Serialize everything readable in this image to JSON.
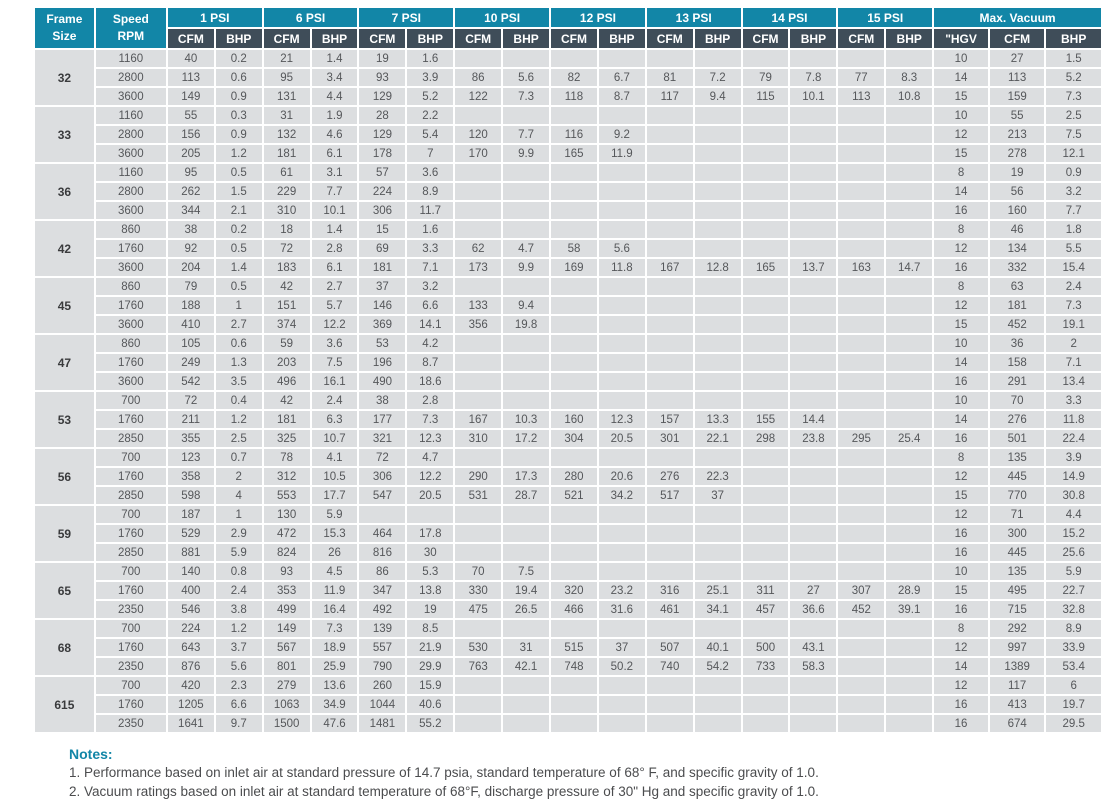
{
  "table": {
    "frame_header": {
      "line1": "Frame",
      "line2": "Size"
    },
    "speed_header": {
      "line1": "Speed",
      "line2": "RPM"
    },
    "psi_headers": [
      "1 PSI",
      "6 PSI",
      "7 PSI",
      "10 PSI",
      "12 PSI",
      "13 PSI",
      "14 PSI",
      "15 PSI"
    ],
    "max_vacuum_header": "Max. Vacuum",
    "sub_headers": [
      "CFM",
      "BHP",
      "CFM",
      "BHP",
      "CFM",
      "BHP",
      "CFM",
      "BHP",
      "CFM",
      "BHP",
      "CFM",
      "BHP",
      "CFM",
      "BHP",
      "CFM",
      "BHP",
      "\"HGV",
      "CFM",
      "BHP"
    ],
    "groups": [
      {
        "frame": "32",
        "rows": [
          {
            "rpm": "1160",
            "cells": [
              "40",
              "0.2",
              "21",
              "1.4",
              "19",
              "1.6",
              "",
              "",
              "",
              "",
              "",
              "",
              "",
              "",
              "",
              "",
              "10",
              "27",
              "1.5"
            ]
          },
          {
            "rpm": "2800",
            "cells": [
              "113",
              "0.6",
              "95",
              "3.4",
              "93",
              "3.9",
              "86",
              "5.6",
              "82",
              "6.7",
              "81",
              "7.2",
              "79",
              "7.8",
              "77",
              "8.3",
              "14",
              "113",
              "5.2"
            ]
          },
          {
            "rpm": "3600",
            "cells": [
              "149",
              "0.9",
              "131",
              "4.4",
              "129",
              "5.2",
              "122",
              "7.3",
              "118",
              "8.7",
              "117",
              "9.4",
              "115",
              "10.1",
              "113",
              "10.8",
              "15",
              "159",
              "7.3"
            ]
          }
        ]
      },
      {
        "frame": "33",
        "rows": [
          {
            "rpm": "1160",
            "cells": [
              "55",
              "0.3",
              "31",
              "1.9",
              "28",
              "2.2",
              "",
              "",
              "",
              "",
              "",
              "",
              "",
              "",
              "",
              "",
              "10",
              "55",
              "2.5"
            ]
          },
          {
            "rpm": "2800",
            "cells": [
              "156",
              "0.9",
              "132",
              "4.6",
              "129",
              "5.4",
              "120",
              "7.7",
              "116",
              "9.2",
              "",
              "",
              "",
              "",
              "",
              "",
              "12",
              "213",
              "7.5"
            ]
          },
          {
            "rpm": "3600",
            "cells": [
              "205",
              "1.2",
              "181",
              "6.1",
              "178",
              "7",
              "170",
              "9.9",
              "165",
              "11.9",
              "",
              "",
              "",
              "",
              "",
              "",
              "15",
              "278",
              "12.1"
            ]
          }
        ]
      },
      {
        "frame": "36",
        "rows": [
          {
            "rpm": "1160",
            "cells": [
              "95",
              "0.5",
              "61",
              "3.1",
              "57",
              "3.6",
              "",
              "",
              "",
              "",
              "",
              "",
              "",
              "",
              "",
              "",
              "8",
              "19",
              "0.9"
            ]
          },
          {
            "rpm": "2800",
            "cells": [
              "262",
              "1.5",
              "229",
              "7.7",
              "224",
              "8.9",
              "",
              "",
              "",
              "",
              "",
              "",
              "",
              "",
              "",
              "",
              "14",
              "56",
              "3.2"
            ]
          },
          {
            "rpm": "3600",
            "cells": [
              "344",
              "2.1",
              "310",
              "10.1",
              "306",
              "11.7",
              "",
              "",
              "",
              "",
              "",
              "",
              "",
              "",
              "",
              "",
              "16",
              "160",
              "7.7"
            ]
          }
        ]
      },
      {
        "frame": "42",
        "rows": [
          {
            "rpm": "860",
            "cells": [
              "38",
              "0.2",
              "18",
              "1.4",
              "15",
              "1.6",
              "",
              "",
              "",
              "",
              "",
              "",
              "",
              "",
              "",
              "",
              "8",
              "46",
              "1.8"
            ]
          },
          {
            "rpm": "1760",
            "cells": [
              "92",
              "0.5",
              "72",
              "2.8",
              "69",
              "3.3",
              "62",
              "4.7",
              "58",
              "5.6",
              "",
              "",
              "",
              "",
              "",
              "",
              "12",
              "134",
              "5.5"
            ]
          },
          {
            "rpm": "3600",
            "cells": [
              "204",
              "1.4",
              "183",
              "6.1",
              "181",
              "7.1",
              "173",
              "9.9",
              "169",
              "11.8",
              "167",
              "12.8",
              "165",
              "13.7",
              "163",
              "14.7",
              "16",
              "332",
              "15.4"
            ]
          }
        ]
      },
      {
        "frame": "45",
        "rows": [
          {
            "rpm": "860",
            "cells": [
              "79",
              "0.5",
              "42",
              "2.7",
              "37",
              "3.2",
              "",
              "",
              "",
              "",
              "",
              "",
              "",
              "",
              "",
              "",
              "8",
              "63",
              "2.4"
            ]
          },
          {
            "rpm": "1760",
            "cells": [
              "188",
              "1",
              "151",
              "5.7",
              "146",
              "6.6",
              "133",
              "9.4",
              "",
              "",
              "",
              "",
              "",
              "",
              "",
              "",
              "12",
              "181",
              "7.3"
            ]
          },
          {
            "rpm": "3600",
            "cells": [
              "410",
              "2.7",
              "374",
              "12.2",
              "369",
              "14.1",
              "356",
              "19.8",
              "",
              "",
              "",
              "",
              "",
              "",
              "",
              "",
              "15",
              "452",
              "19.1"
            ]
          }
        ]
      },
      {
        "frame": "47",
        "rows": [
          {
            "rpm": "860",
            "cells": [
              "105",
              "0.6",
              "59",
              "3.6",
              "53",
              "4.2",
              "",
              "",
              "",
              "",
              "",
              "",
              "",
              "",
              "",
              "",
              "10",
              "36",
              "2"
            ]
          },
          {
            "rpm": "1760",
            "cells": [
              "249",
              "1.3",
              "203",
              "7.5",
              "196",
              "8.7",
              "",
              "",
              "",
              "",
              "",
              "",
              "",
              "",
              "",
              "",
              "14",
              "158",
              "7.1"
            ]
          },
          {
            "rpm": "3600",
            "cells": [
              "542",
              "3.5",
              "496",
              "16.1",
              "490",
              "18.6",
              "",
              "",
              "",
              "",
              "",
              "",
              "",
              "",
              "",
              "",
              "16",
              "291",
              "13.4"
            ]
          }
        ]
      },
      {
        "frame": "53",
        "rows": [
          {
            "rpm": "700",
            "cells": [
              "72",
              "0.4",
              "42",
              "2.4",
              "38",
              "2.8",
              "",
              "",
              "",
              "",
              "",
              "",
              "",
              "",
              "",
              "",
              "10",
              "70",
              "3.3"
            ]
          },
          {
            "rpm": "1760",
            "cells": [
              "211",
              "1.2",
              "181",
              "6.3",
              "177",
              "7.3",
              "167",
              "10.3",
              "160",
              "12.3",
              "157",
              "13.3",
              "155",
              "14.4",
              "",
              "",
              "14",
              "276",
              "11.8"
            ]
          },
          {
            "rpm": "2850",
            "cells": [
              "355",
              "2.5",
              "325",
              "10.7",
              "321",
              "12.3",
              "310",
              "17.2",
              "304",
              "20.5",
              "301",
              "22.1",
              "298",
              "23.8",
              "295",
              "25.4",
              "16",
              "501",
              "22.4"
            ]
          }
        ]
      },
      {
        "frame": "56",
        "rows": [
          {
            "rpm": "700",
            "cells": [
              "123",
              "0.7",
              "78",
              "4.1",
              "72",
              "4.7",
              "",
              "",
              "",
              "",
              "",
              "",
              "",
              "",
              "",
              "",
              "8",
              "135",
              "3.9"
            ]
          },
          {
            "rpm": "1760",
            "cells": [
              "358",
              "2",
              "312",
              "10.5",
              "306",
              "12.2",
              "290",
              "17.3",
              "280",
              "20.6",
              "276",
              "22.3",
              "",
              "",
              "",
              "",
              "12",
              "445",
              "14.9"
            ]
          },
          {
            "rpm": "2850",
            "cells": [
              "598",
              "4",
              "553",
              "17.7",
              "547",
              "20.5",
              "531",
              "28.7",
              "521",
              "34.2",
              "517",
              "37",
              "",
              "",
              "",
              "",
              "15",
              "770",
              "30.8"
            ]
          }
        ]
      },
      {
        "frame": "59",
        "rows": [
          {
            "rpm": "700",
            "cells": [
              "187",
              "1",
              "130",
              "5.9",
              "",
              "",
              "",
              "",
              "",
              "",
              "",
              "",
              "",
              "",
              "",
              "",
              "12",
              "71",
              "4.4"
            ]
          },
          {
            "rpm": "1760",
            "cells": [
              "529",
              "2.9",
              "472",
              "15.3",
              "464",
              "17.8",
              "",
              "",
              "",
              "",
              "",
              "",
              "",
              "",
              "",
              "",
              "16",
              "300",
              "15.2"
            ]
          },
          {
            "rpm": "2850",
            "cells": [
              "881",
              "5.9",
              "824",
              "26",
              "816",
              "30",
              "",
              "",
              "",
              "",
              "",
              "",
              "",
              "",
              "",
              "",
              "16",
              "445",
              "25.6"
            ]
          }
        ]
      },
      {
        "frame": "65",
        "rows": [
          {
            "rpm": "700",
            "cells": [
              "140",
              "0.8",
              "93",
              "4.5",
              "86",
              "5.3",
              "70",
              "7.5",
              "",
              "",
              "",
              "",
              "",
              "",
              "",
              "",
              "10",
              "135",
              "5.9"
            ]
          },
          {
            "rpm": "1760",
            "cells": [
              "400",
              "2.4",
              "353",
              "11.9",
              "347",
              "13.8",
              "330",
              "19.4",
              "320",
              "23.2",
              "316",
              "25.1",
              "311",
              "27",
              "307",
              "28.9",
              "15",
              "495",
              "22.7"
            ]
          },
          {
            "rpm": "2350",
            "cells": [
              "546",
              "3.8",
              "499",
              "16.4",
              "492",
              "19",
              "475",
              "26.5",
              "466",
              "31.6",
              "461",
              "34.1",
              "457",
              "36.6",
              "452",
              "39.1",
              "16",
              "715",
              "32.8"
            ]
          }
        ]
      },
      {
        "frame": "68",
        "rows": [
          {
            "rpm": "700",
            "cells": [
              "224",
              "1.2",
              "149",
              "7.3",
              "139",
              "8.5",
              "",
              "",
              "",
              "",
              "",
              "",
              "",
              "",
              "",
              "",
              "8",
              "292",
              "8.9"
            ]
          },
          {
            "rpm": "1760",
            "cells": [
              "643",
              "3.7",
              "567",
              "18.9",
              "557",
              "21.9",
              "530",
              "31",
              "515",
              "37",
              "507",
              "40.1",
              "500",
              "43.1",
              "",
              "",
              "12",
              "997",
              "33.9"
            ]
          },
          {
            "rpm": "2350",
            "cells": [
              "876",
              "5.6",
              "801",
              "25.9",
              "790",
              "29.9",
              "763",
              "42.1",
              "748",
              "50.2",
              "740",
              "54.2",
              "733",
              "58.3",
              "",
              "",
              "14",
              "1389",
              "53.4"
            ]
          }
        ]
      },
      {
        "frame": "615",
        "rows": [
          {
            "rpm": "700",
            "cells": [
              "420",
              "2.3",
              "279",
              "13.6",
              "260",
              "15.9",
              "",
              "",
              "",
              "",
              "",
              "",
              "",
              "",
              "",
              "",
              "12",
              "117",
              "6"
            ]
          },
          {
            "rpm": "1760",
            "cells": [
              "1205",
              "6.6",
              "1063",
              "34.9",
              "1044",
              "40.6",
              "",
              "",
              "",
              "",
              "",
              "",
              "",
              "",
              "",
              "",
              "16",
              "413",
              "19.7"
            ]
          },
          {
            "rpm": "2350",
            "cells": [
              "1641",
              "9.7",
              "1500",
              "47.6",
              "1481",
              "55.2",
              "",
              "",
              "",
              "",
              "",
              "",
              "",
              "",
              "",
              "",
              "16",
              "674",
              "29.5"
            ]
          }
        ]
      }
    ]
  },
  "notes": {
    "title": "Notes:",
    "items": [
      "1.  Performance based on inlet air at standard pressure of 14.7 psia, standard temperature of 68° F, and specific gravity of 1.0.",
      "2.  Vacuum ratings based on inlet air at standard temperature of 68°F, discharge pressure of 30\" Hg and specific gravity of 1.0."
    ]
  },
  "colors": {
    "teal_header": "#1286a7",
    "dark_subheader": "#3f4d59",
    "cell_background": "#dcdee0",
    "cell_text": "#55575a"
  }
}
